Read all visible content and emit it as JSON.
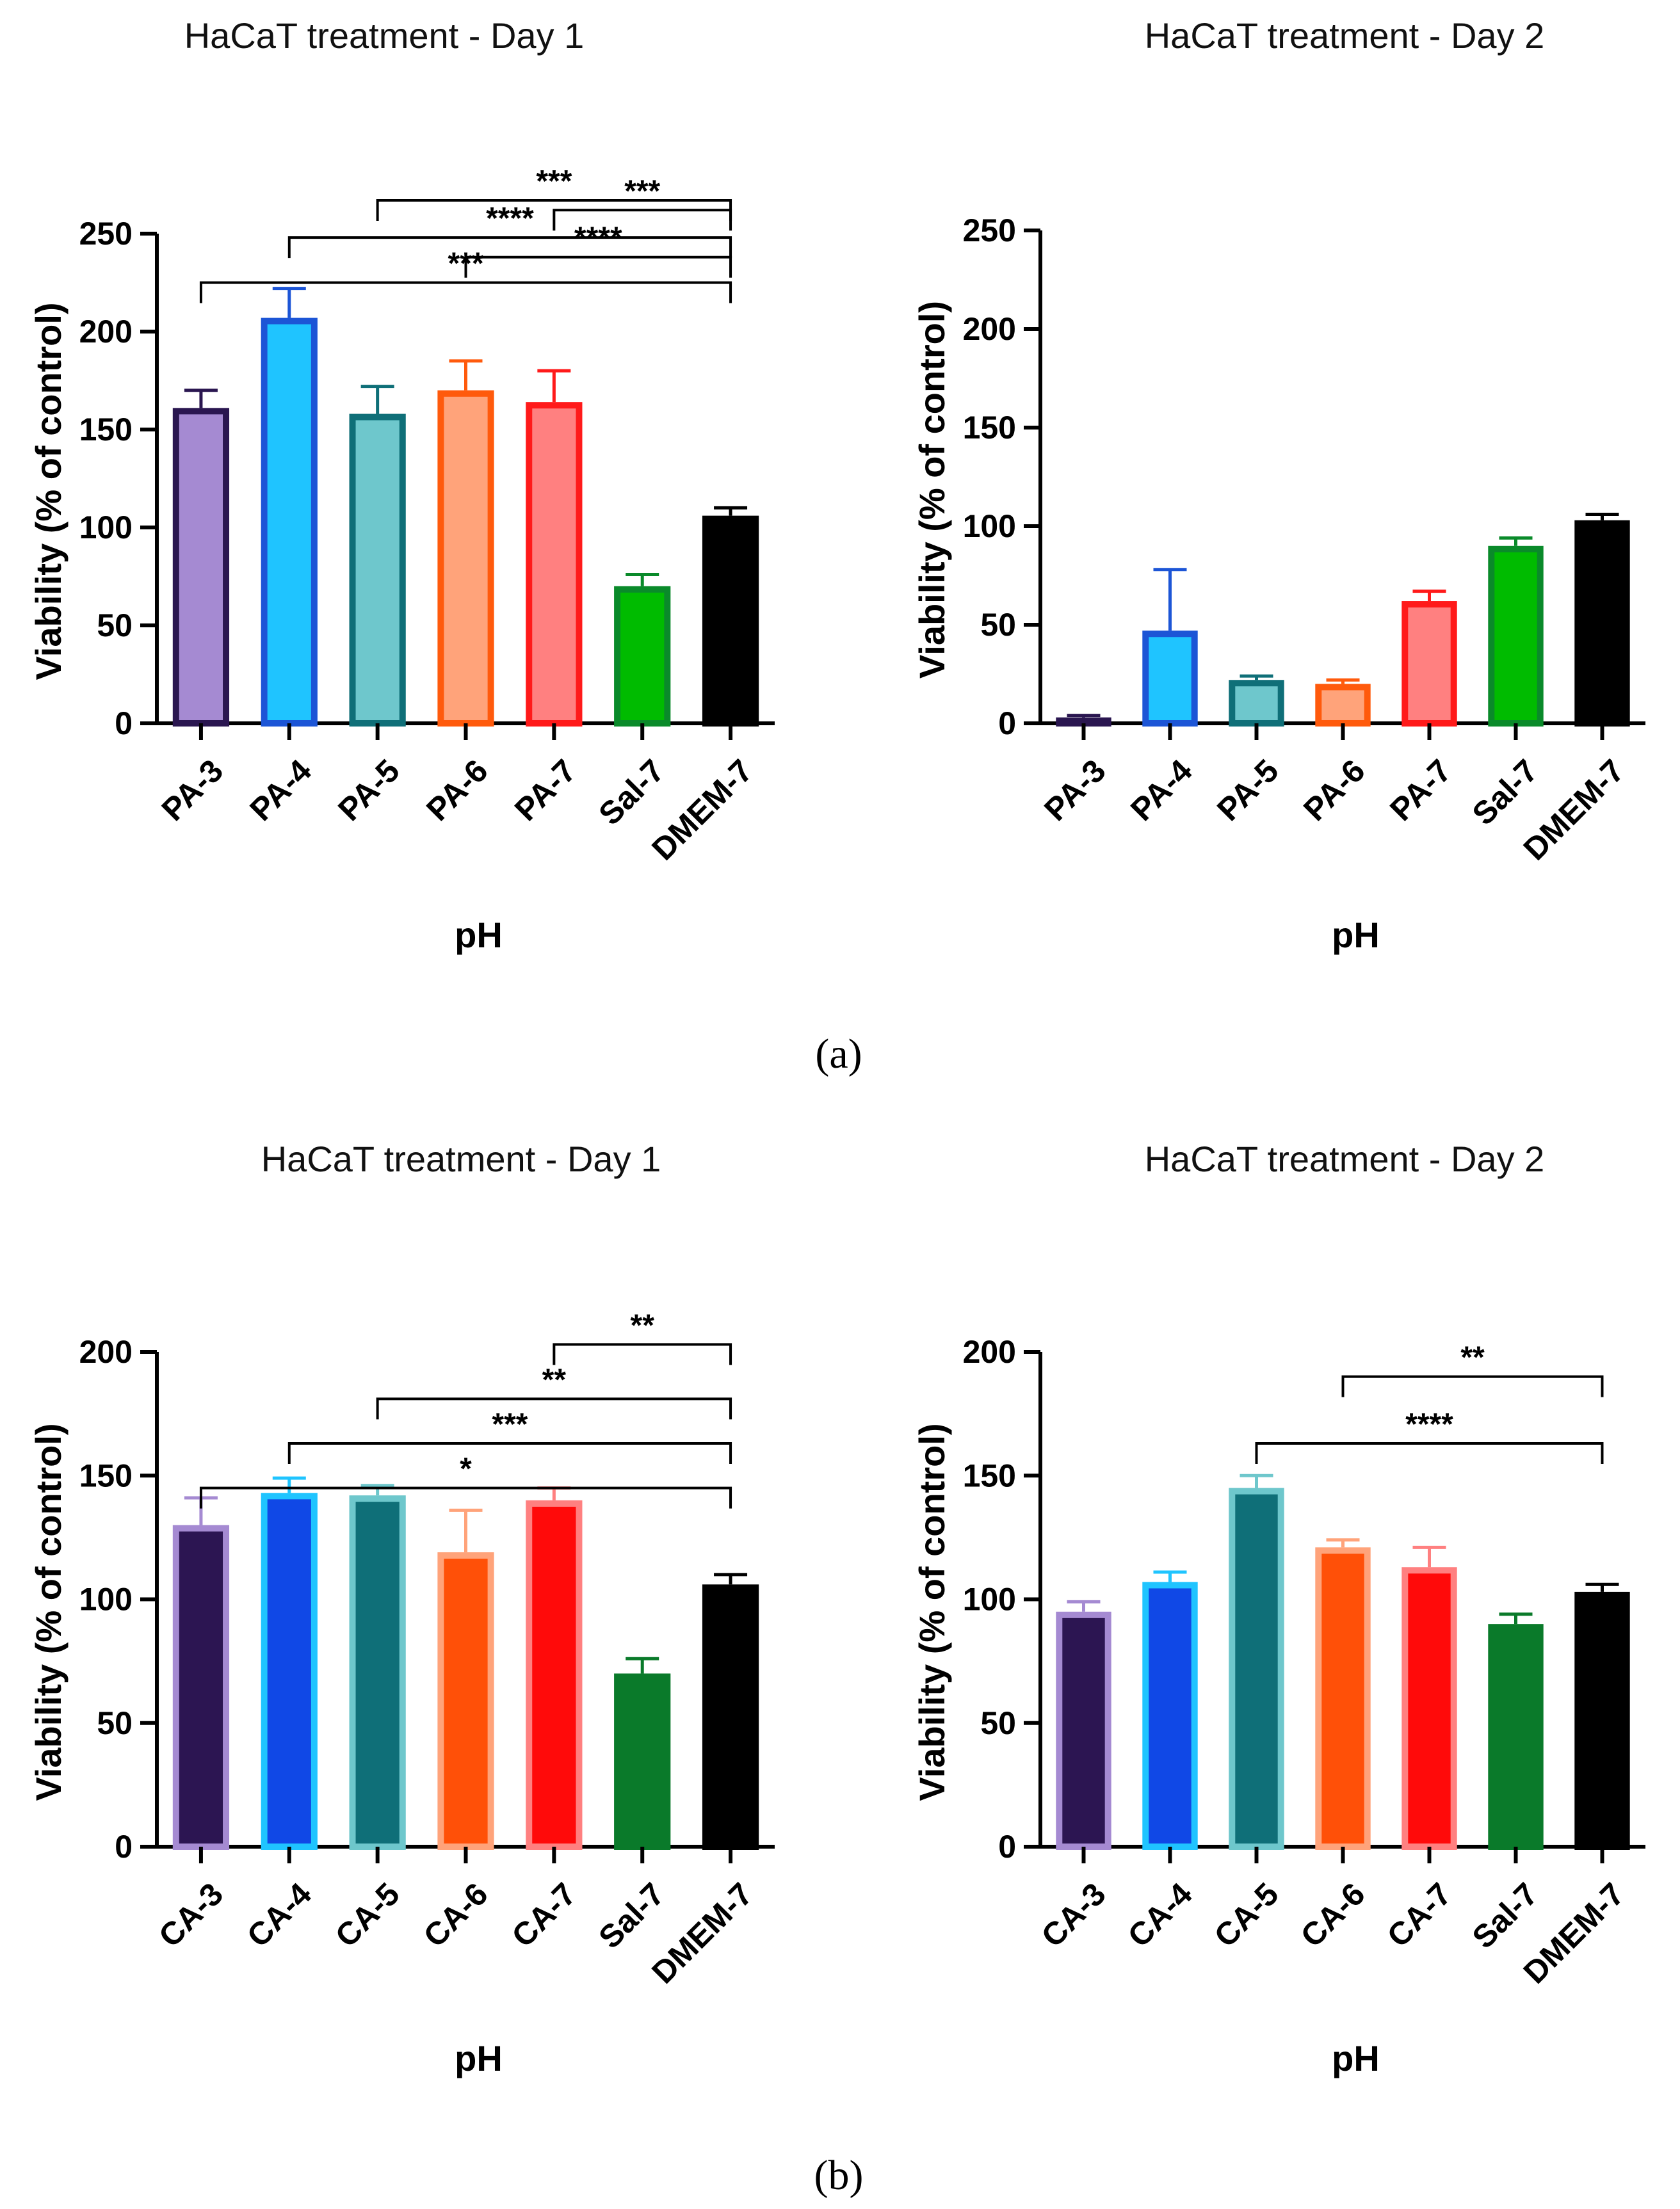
{
  "panel_labels": [
    "(a)",
    "(b)"
  ],
  "chart_data": [
    {
      "type": "bar",
      "title": "HaCaT treatment - Day 1",
      "xlabel": "pH",
      "ylabel": "Viability (% of control)",
      "ylim": [
        0,
        250
      ],
      "yticks": [
        0,
        50,
        100,
        150,
        200,
        250
      ],
      "categories": [
        "PA-3",
        "PA-4",
        "PA-5",
        "PA-6",
        "PA-7",
        "Sal-7",
        "DMEM-7"
      ],
      "values": [
        161,
        207,
        158,
        170,
        164,
        70,
        106
      ],
      "errors": [
        9,
        15,
        14,
        15,
        16,
        6,
        4
      ],
      "fill_colors": [
        "#a58ad2",
        "#1fc4ff",
        "#6ec7cc",
        "#ffa37a",
        "#ff8080",
        "#00bb00",
        "#000000"
      ],
      "edge_colors": [
        "#2a1650",
        "#1c55d6",
        "#0f6f78",
        "#ff5a0c",
        "#ff1a1a",
        "#0a8a2a",
        "#000000"
      ],
      "significance": [
        {
          "from": "PA-7",
          "to": "DMEM-7",
          "label": "***",
          "y": 262
        },
        {
          "from": "PA-6",
          "to": "DMEM-7",
          "label": "****",
          "y": 238
        },
        {
          "from": "PA-5",
          "to": "DMEM-7",
          "label": "***",
          "y": 267
        },
        {
          "from": "PA-4",
          "to": "DMEM-7",
          "label": "****",
          "y": 248
        },
        {
          "from": "PA-3",
          "to": "DMEM-7",
          "label": "***",
          "y": 225
        }
      ]
    },
    {
      "type": "bar",
      "title": "HaCaT treatment - Day 2",
      "xlabel": "pH",
      "ylabel": "Viability (% of control)",
      "ylim": [
        0,
        250
      ],
      "yticks": [
        0,
        50,
        100,
        150,
        200,
        250
      ],
      "categories": [
        "PA-3",
        "PA-4",
        "PA-5",
        "PA-6",
        "PA-7",
        "Sal-7",
        "DMEM-7"
      ],
      "values": [
        3,
        47,
        22,
        20,
        62,
        90,
        103
      ],
      "errors": [
        1,
        31,
        2,
        2,
        5,
        4,
        3
      ],
      "fill_colors": [
        "#a58ad2",
        "#1fc4ff",
        "#6ec7cc",
        "#ffa37a",
        "#ff8080",
        "#00bb00",
        "#000000"
      ],
      "edge_colors": [
        "#2a1650",
        "#1c55d6",
        "#0f6f78",
        "#ff5a0c",
        "#ff1a1a",
        "#0a8a2a",
        "#000000"
      ],
      "significance": []
    },
    {
      "type": "bar",
      "title": "HaCaT treatment - Day 1",
      "xlabel": "pH",
      "ylabel": "Viability (% of control)",
      "ylim": [
        0,
        200
      ],
      "yticks": [
        0,
        50,
        100,
        150,
        200
      ],
      "categories": [
        "CA-3",
        "CA-4",
        "CA-5",
        "CA-6",
        "CA-7",
        "Sal-7",
        "DMEM-7"
      ],
      "values": [
        130,
        143,
        142,
        119,
        140,
        70,
        106
      ],
      "errors": [
        11,
        6,
        4,
        17,
        5,
        6,
        4
      ],
      "fill_colors": [
        "#2c1552",
        "#1048e6",
        "#0f6f78",
        "#ff5008",
        "#ff0a0a",
        "#0a7a2a",
        "#000000"
      ],
      "edge_colors": [
        "#a58ad2",
        "#1fc4ff",
        "#6ec7cc",
        "#ffa37a",
        "#ff8080",
        "#0a7a2a",
        "#000000"
      ],
      "significance": [
        {
          "from": "CA-7",
          "to": "DMEM-7",
          "label": "**",
          "y": 203
        },
        {
          "from": "CA-5",
          "to": "DMEM-7",
          "label": "**",
          "y": 181
        },
        {
          "from": "CA-4",
          "to": "DMEM-7",
          "label": "***",
          "y": 163
        },
        {
          "from": "CA-3",
          "to": "DMEM-7",
          "label": "*",
          "y": 145
        }
      ]
    },
    {
      "type": "bar",
      "title": "HaCaT treatment - Day 2",
      "xlabel": "pH",
      "ylabel": "Viability (% of control)",
      "ylim": [
        0,
        200
      ],
      "yticks": [
        0,
        50,
        100,
        150,
        200
      ],
      "categories": [
        "CA-3",
        "CA-4",
        "CA-5",
        "CA-6",
        "CA-7",
        "Sal-7",
        "DMEM-7"
      ],
      "values": [
        95,
        107,
        145,
        121,
        113,
        90,
        103
      ],
      "errors": [
        4,
        4,
        5,
        3,
        8,
        4,
        3
      ],
      "fill_colors": [
        "#2c1552",
        "#1048e6",
        "#0f6f78",
        "#ff5008",
        "#ff0a0a",
        "#0a7a2a",
        "#000000"
      ],
      "edge_colors": [
        "#a58ad2",
        "#1fc4ff",
        "#6ec7cc",
        "#ffa37a",
        "#ff8080",
        "#0a7a2a",
        "#000000"
      ],
      "significance": [
        {
          "from": "CA-6",
          "to": "DMEM-7",
          "label": "**",
          "y": 190
        },
        {
          "from": "CA-5",
          "to": "DMEM-7",
          "label": "****",
          "y": 163
        }
      ]
    }
  ]
}
